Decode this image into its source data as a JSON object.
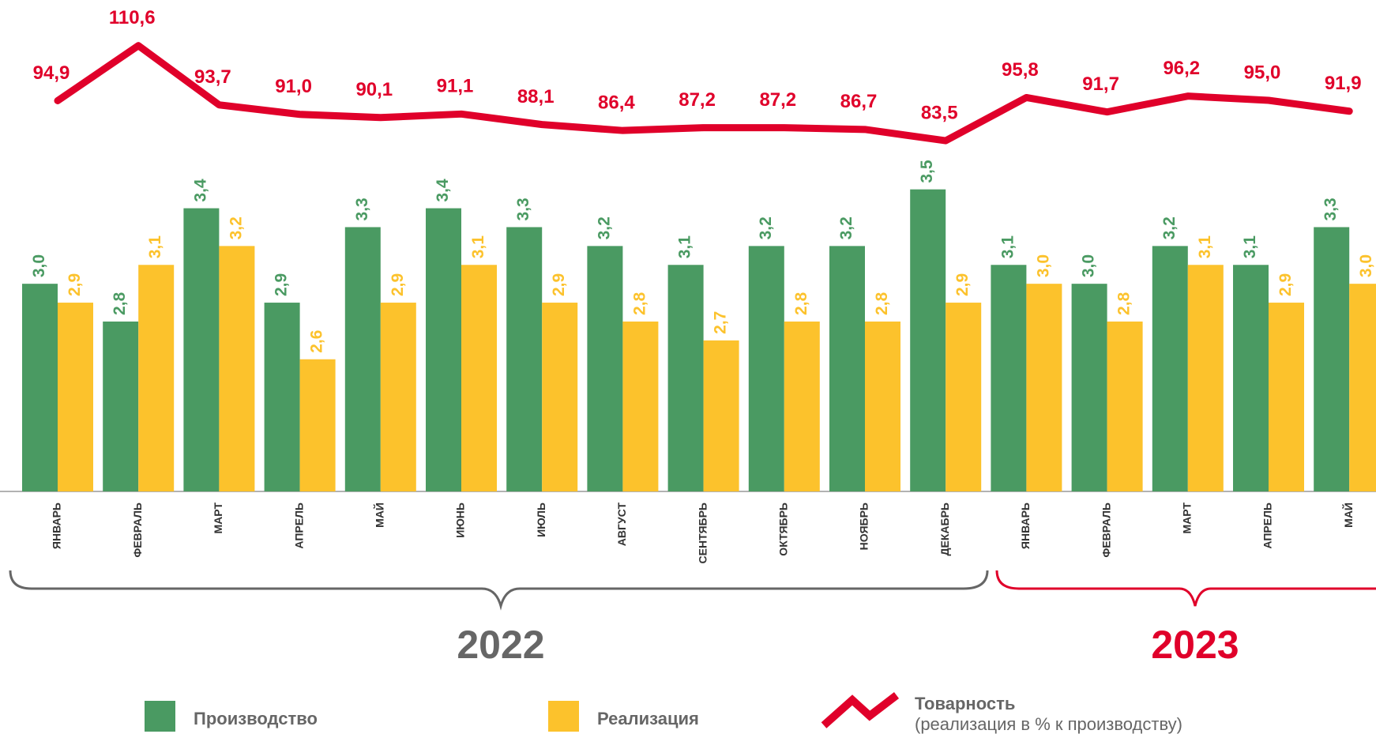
{
  "chart_data": {
    "type": "bar_line",
    "categories": [
      "ЯНВАРЬ",
      "ФЕВРАЛЬ",
      "МАРТ",
      "АПРЕЛЬ",
      "МАЙ",
      "ИЮНЬ",
      "ИЮЛЬ",
      "АВГУСТ",
      "СЕНТЯБРЬ",
      "ОКТЯБРЬ",
      "НОЯБРЬ",
      "ДЕКАБРЬ",
      "ЯНВАРЬ",
      "ФЕВРАЛЬ",
      "МАРТ",
      "АПРЕЛЬ",
      "МАЙ"
    ],
    "year_groups": [
      {
        "label": "2022",
        "color": "#666666"
      },
      {
        "label": "2023",
        "color": "#e0002a"
      }
    ],
    "ylim": [
      1.9,
      3.8
    ],
    "y2lim": [
      70,
      120
    ],
    "series": [
      {
        "name": "Производство",
        "color": "#4a9a62",
        "kind": "bar",
        "values": [
          3.0,
          2.8,
          3.4,
          2.9,
          3.3,
          3.4,
          3.3,
          3.2,
          3.1,
          3.2,
          3.2,
          3.5,
          3.1,
          3.0,
          3.2,
          3.1,
          3.3
        ],
        "value_labels": [
          "3,0",
          "2,8",
          "3,4",
          "2,9",
          "3,3",
          "3,4",
          "3,3",
          "3,2",
          "3,1",
          "3,2",
          "3,2",
          "3,5",
          "3,1",
          "3,0",
          "3,2",
          "3,1",
          "3,3"
        ]
      },
      {
        "name": "Реализация",
        "color": "#fcc22c",
        "kind": "bar",
        "values": [
          2.9,
          3.1,
          3.2,
          2.6,
          2.9,
          3.1,
          2.9,
          2.8,
          2.7,
          2.8,
          2.8,
          2.9,
          3.0,
          2.8,
          3.1,
          2.9,
          3.0
        ],
        "value_labels": [
          "2,9",
          "3,1",
          "3,2",
          "2,6",
          "2,9",
          "3,1",
          "2,9",
          "2,8",
          "2,7",
          "2,8",
          "2,8",
          "2,9",
          "3,0",
          "2,8",
          "3,1",
          "2,9",
          "3,0"
        ]
      },
      {
        "name": "Товарность",
        "note": "(реализация в % к производству)",
        "color": "#e0002a",
        "kind": "line",
        "axis": "y2",
        "values": [
          94.9,
          110.6,
          93.7,
          91.0,
          90.1,
          91.1,
          88.1,
          86.4,
          87.2,
          87.2,
          86.7,
          83.5,
          95.8,
          91.7,
          96.2,
          95.0,
          91.9
        ],
        "value_labels": [
          "94,9",
          "110,6",
          "93,7",
          "91,0",
          "90,1",
          "91,1",
          "88,1",
          "86,4",
          "87,2",
          "87,2",
          "86,7",
          "83,5",
          "95,8",
          "91,7",
          "96,2",
          "95,0",
          "91,9"
        ]
      }
    ]
  }
}
